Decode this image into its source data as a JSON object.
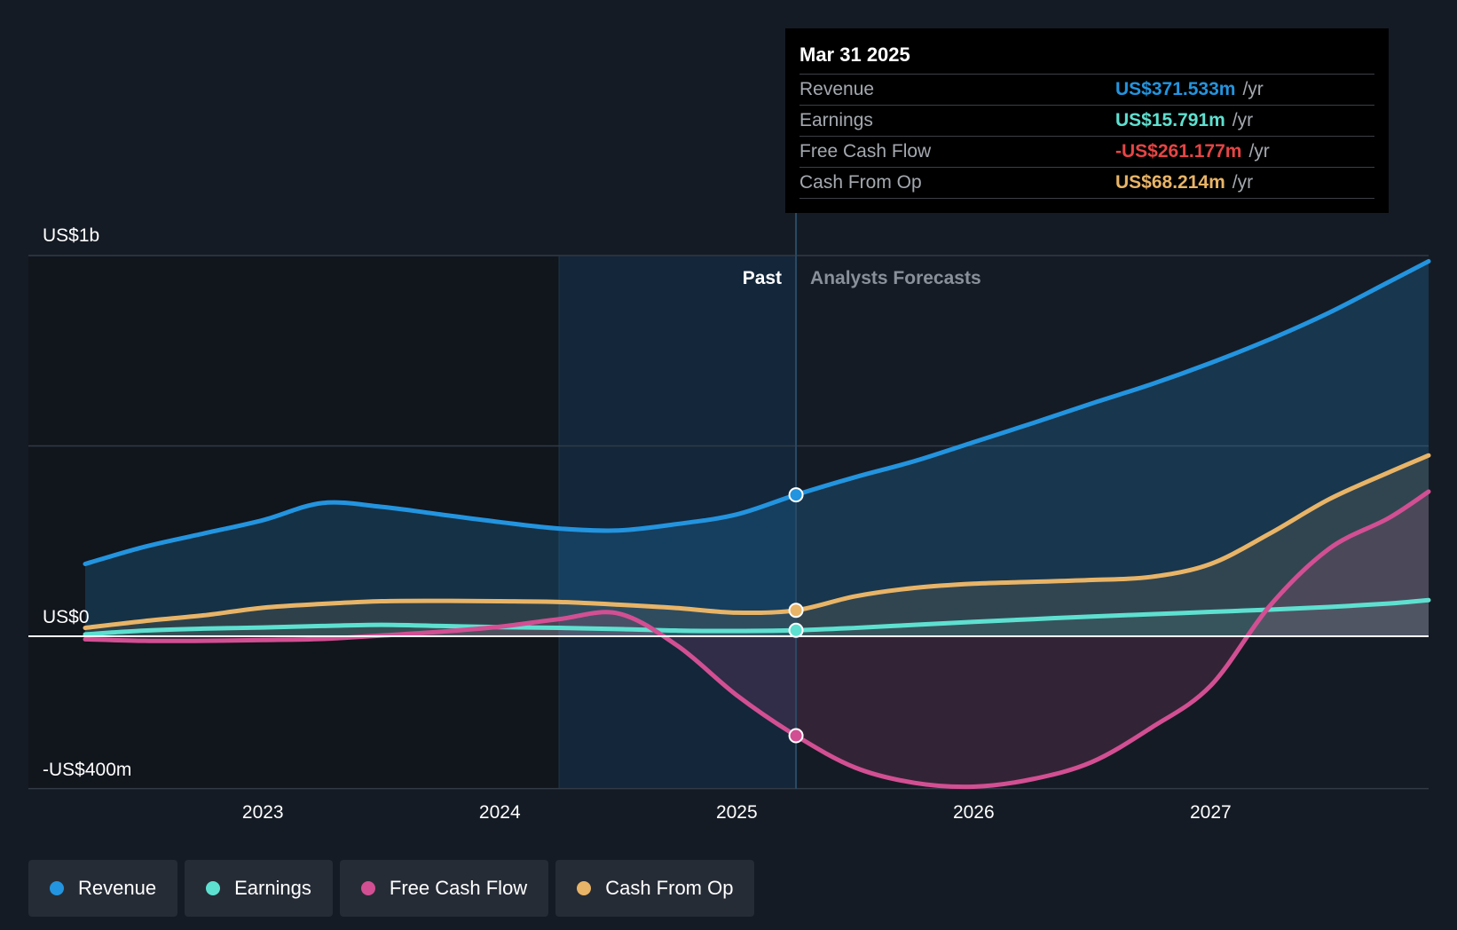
{
  "chart_data": {
    "type": "line",
    "x_start": 2022.25,
    "x_end": 2027.92,
    "ylim": [
      -400,
      1000
    ],
    "y_tick_labels": [
      {
        "value": 1000,
        "label": "US$1b"
      },
      {
        "value": 0,
        "label": "US$0"
      },
      {
        "value": -400,
        "label": "-US$400m"
      }
    ],
    "x_ticks": [
      2023,
      2024,
      2025,
      2026,
      2027
    ],
    "x_tick_labels": [
      "2023",
      "2024",
      "2025",
      "2026",
      "2027"
    ],
    "past_label": "Past",
    "forecast_label": "Analysts Forecasts",
    "divider_x": 2025.25,
    "highlight_start": 2024.25,
    "series": [
      {
        "name": "Revenue",
        "color": "#2394df",
        "points": [
          [
            2022.25,
            190
          ],
          [
            2022.5,
            235
          ],
          [
            2022.75,
            270
          ],
          [
            2023.0,
            305
          ],
          [
            2023.25,
            350
          ],
          [
            2023.5,
            340
          ],
          [
            2023.75,
            320
          ],
          [
            2024.0,
            300
          ],
          [
            2024.25,
            283
          ],
          [
            2024.5,
            278
          ],
          [
            2024.75,
            295
          ],
          [
            2025.0,
            320
          ],
          [
            2025.25,
            371.533
          ],
          [
            2025.5,
            418
          ],
          [
            2025.75,
            460
          ],
          [
            2026.0,
            510
          ],
          [
            2026.25,
            560
          ],
          [
            2026.5,
            612
          ],
          [
            2026.75,
            662
          ],
          [
            2027.0,
            718
          ],
          [
            2027.25,
            780
          ],
          [
            2027.5,
            850
          ],
          [
            2027.75,
            930
          ],
          [
            2027.92,
            985
          ]
        ]
      },
      {
        "name": "Earnings",
        "color": "#5ee0d0",
        "points": [
          [
            2022.25,
            5
          ],
          [
            2022.5,
            15
          ],
          [
            2022.75,
            20
          ],
          [
            2023.0,
            23
          ],
          [
            2023.25,
            27
          ],
          [
            2023.5,
            30
          ],
          [
            2023.75,
            27
          ],
          [
            2024.0,
            24
          ],
          [
            2024.25,
            22
          ],
          [
            2024.5,
            19
          ],
          [
            2024.75,
            15
          ],
          [
            2025.0,
            14
          ],
          [
            2025.25,
            15.791
          ],
          [
            2025.5,
            22
          ],
          [
            2025.75,
            30
          ],
          [
            2026.0,
            38
          ],
          [
            2026.25,
            45
          ],
          [
            2026.5,
            52
          ],
          [
            2026.75,
            58
          ],
          [
            2027.0,
            64
          ],
          [
            2027.25,
            70
          ],
          [
            2027.5,
            77
          ],
          [
            2027.75,
            86
          ],
          [
            2027.92,
            95
          ]
        ]
      },
      {
        "name": "Free Cash Flow",
        "color": "#d24f93",
        "points": [
          [
            2022.25,
            -8
          ],
          [
            2022.5,
            -12
          ],
          [
            2022.75,
            -12
          ],
          [
            2023.0,
            -10
          ],
          [
            2023.25,
            -7
          ],
          [
            2023.5,
            2
          ],
          [
            2023.75,
            12
          ],
          [
            2024.0,
            25
          ],
          [
            2024.25,
            45
          ],
          [
            2024.5,
            60
          ],
          [
            2024.75,
            -25
          ],
          [
            2025.0,
            -155
          ],
          [
            2025.25,
            -261.177
          ],
          [
            2025.5,
            -345
          ],
          [
            2025.75,
            -385
          ],
          [
            2026.0,
            -395
          ],
          [
            2026.25,
            -375
          ],
          [
            2026.5,
            -330
          ],
          [
            2026.75,
            -240
          ],
          [
            2027.0,
            -130
          ],
          [
            2027.25,
            80
          ],
          [
            2027.5,
            230
          ],
          [
            2027.75,
            310
          ],
          [
            2027.92,
            380
          ]
        ]
      },
      {
        "name": "Cash From Op",
        "color": "#e8b467",
        "points": [
          [
            2022.25,
            22
          ],
          [
            2022.5,
            40
          ],
          [
            2022.75,
            55
          ],
          [
            2023.0,
            75
          ],
          [
            2023.25,
            85
          ],
          [
            2023.5,
            92
          ],
          [
            2023.75,
            93
          ],
          [
            2024.0,
            92
          ],
          [
            2024.25,
            90
          ],
          [
            2024.5,
            83
          ],
          [
            2024.75,
            74
          ],
          [
            2025.0,
            62
          ],
          [
            2025.25,
            68.214
          ],
          [
            2025.5,
            105
          ],
          [
            2025.75,
            127
          ],
          [
            2026.0,
            138
          ],
          [
            2026.25,
            143
          ],
          [
            2026.5,
            148
          ],
          [
            2026.75,
            156
          ],
          [
            2027.0,
            190
          ],
          [
            2027.25,
            270
          ],
          [
            2027.5,
            360
          ],
          [
            2027.75,
            430
          ],
          [
            2027.92,
            475
          ]
        ]
      }
    ],
    "highlight_x": 2025.25
  },
  "tooltip": {
    "date": "Mar 31 2025",
    "unit": "/yr",
    "rows": [
      {
        "label": "Revenue",
        "value": "US$371.533m",
        "color": "#2394df"
      },
      {
        "label": "Earnings",
        "value": "US$15.791m",
        "color": "#5ee0d0"
      },
      {
        "label": "Free Cash Flow",
        "value": "-US$261.177m",
        "color": "#e64545"
      },
      {
        "label": "Cash From Op",
        "value": "US$68.214m",
        "color": "#e8b467"
      }
    ]
  },
  "legend": [
    {
      "label": "Revenue",
      "color": "#2394df"
    },
    {
      "label": "Earnings",
      "color": "#5ee0d0"
    },
    {
      "label": "Free Cash Flow",
      "color": "#d24f93"
    },
    {
      "label": "Cash From Op",
      "color": "#e8b467"
    }
  ]
}
